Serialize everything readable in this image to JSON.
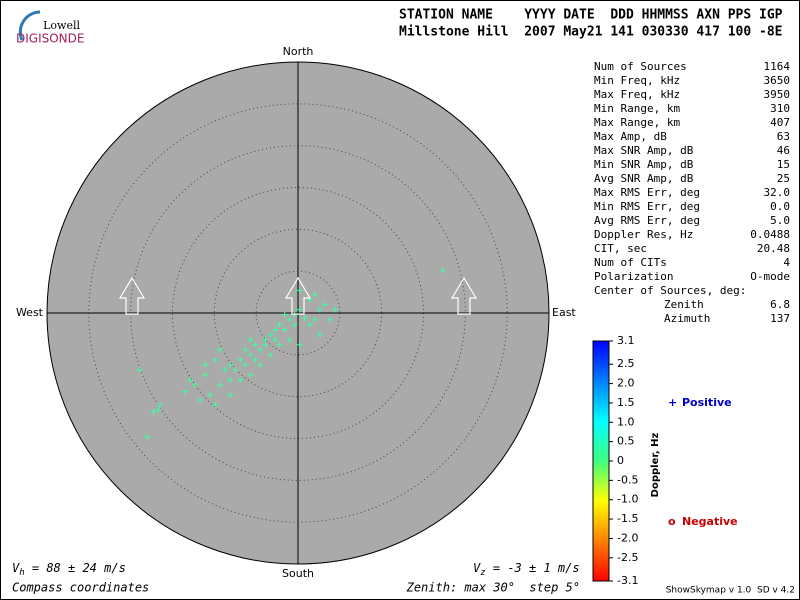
{
  "logo": {
    "line1": "Lowell",
    "line2": "DIGISONDE"
  },
  "header": {
    "columns": "STATION NAME    YYYY DATE  DDD HHMMSS AXN PPS IGP",
    "values": "Millstone Hill  2007 May21 141 030330 417 100 -8E"
  },
  "stats": [
    {
      "label": "Num of Sources",
      "value": "1164"
    },
    {
      "label": "Min Freq, kHz",
      "value": "3650"
    },
    {
      "label": "Max Freq, kHz",
      "value": "3950"
    },
    {
      "label": "Min Range, km",
      "value": "310"
    },
    {
      "label": "Max Range, km",
      "value": "407"
    },
    {
      "label": "Max Amp, dB",
      "value": "63"
    },
    {
      "label": "Max SNR Amp, dB",
      "value": "46"
    },
    {
      "label": "Min SNR Amp, dB",
      "value": "15"
    },
    {
      "label": "Avg SNR Amp, dB",
      "value": "25"
    },
    {
      "label": "Max RMS Err, deg",
      "value": "32.0"
    },
    {
      "label": "Min RMS Err, deg",
      "value": "0.0"
    },
    {
      "label": "Avg RMS Err, deg",
      "value": "5.0"
    },
    {
      "label": "Doppler Res, Hz",
      "value": "0.0488"
    },
    {
      "label": "CIT, sec",
      "value": "20.48"
    },
    {
      "label": "Num of CITs",
      "value": "4"
    },
    {
      "label": "Polarization",
      "value": "O-mode"
    }
  ],
  "center": {
    "title": "Center of Sources, deg:",
    "zenith_label": "Zenith",
    "zenith": "6.8",
    "azimuth_label": "Azimuth",
    "azimuth": "137"
  },
  "chart_data": {
    "type": "scatter",
    "directions": {
      "north": "North",
      "south": "South",
      "east": "East",
      "west": "West"
    },
    "xlim": [
      -30,
      30
    ],
    "ylim": [
      -30,
      30
    ],
    "rings": [
      5,
      10,
      15,
      20,
      25
    ],
    "series": [
      {
        "name": "Positive",
        "color": "#3dffa0",
        "x": [
          -18.0,
          -17.3,
          -16.5,
          -16.7,
          -18.9,
          -13.5,
          -12.3,
          -11.1,
          -9.9,
          -9.3,
          -8.7,
          -8.1,
          -6.9,
          -6.3,
          -5.7,
          -5.1,
          -4.5,
          -3.9,
          -3.3,
          -2.7,
          -2.2,
          -1.6,
          -1.0,
          -0.4,
          0.2,
          0.8,
          1.4,
          2.0,
          2.6,
          3.2,
          1.4,
          0.2,
          4.4,
          3.8,
          2.6,
          0.2,
          -1.0,
          -2.2,
          -3.3,
          -4.5,
          -5.7,
          -6.9,
          -8.1,
          -9.3,
          -10.5,
          -11.7,
          -9.9,
          -7.5,
          -6.3,
          -5.1,
          -3.9,
          -2.7,
          -1.6,
          -0.4,
          2.0,
          17.3,
          -8.1,
          -12.9,
          -11.1,
          -5.7
        ],
        "y": [
          -14.8,
          -11.8,
          -11.0,
          -11.6,
          -6.8,
          -9.4,
          -8.6,
          -7.4,
          -5.6,
          -4.4,
          -6.8,
          -6.2,
          -5.6,
          -4.4,
          -5.0,
          -3.8,
          -4.4,
          -3.2,
          -2.6,
          -2.0,
          -1.4,
          -2.0,
          -0.8,
          -0.2,
          0.4,
          -0.6,
          -1.4,
          -0.8,
          0.4,
          1.0,
          1.6,
          2.7,
          0.4,
          -0.8,
          -2.6,
          -3.8,
          -3.2,
          -3.8,
          -5.0,
          -6.2,
          -7.4,
          -8.0,
          -8.0,
          -8.6,
          -9.8,
          -10.4,
          -11.0,
          -6.8,
          -6.2,
          -5.6,
          -3.8,
          -3.2,
          -0.2,
          -1.4,
          2.2,
          5.1,
          -9.8,
          -8.0,
          -6.2,
          -3.2
        ]
      }
    ],
    "legend": [
      {
        "symbol": "+",
        "label": "Positive",
        "color": "#0000c8"
      },
      {
        "symbol": "o",
        "label": "Negative",
        "color": "#c80000"
      }
    ],
    "colorbar": {
      "label": "Doppler, Hz",
      "lim": [
        -3.1,
        3.1
      ],
      "ticks": [
        3.1,
        2.5,
        {
          "value": 2,
          "label": "2.0"
        },
        1.5,
        {
          "value": 1,
          "label": "1.0"
        },
        0.5,
        0,
        -0.5,
        {
          "value": -1,
          "label": "-1.0"
        },
        -1.5,
        {
          "value": -2,
          "label": "-2.0"
        },
        -2.5,
        -3.1
      ],
      "colors": [
        "#ff0000",
        "#ff8000",
        "#ffff00",
        "#40ff80",
        "#00ffff",
        "#0080ff",
        "#0000ff"
      ]
    }
  },
  "footer": {
    "vh_symbol": "V",
    "vh_sub": "h",
    "vh_text": " = 88 ± 24 m/s",
    "vz_symbol": "V",
    "vz_sub": "z",
    "vz_text": " = -3 ± 1 m/s",
    "coords": "Compass coordinates",
    "zenith": "Zenith: max 30°  step 5°",
    "version": "ShowSkymap v 1.0  SD v 4.2"
  }
}
